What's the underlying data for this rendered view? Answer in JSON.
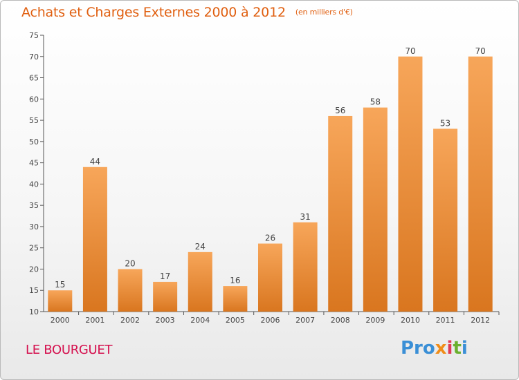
{
  "chart_data": {
    "type": "bar",
    "title": "Achats et Charges Externes 2000 à 2012",
    "unit_label": "(en milliers d'€)",
    "categories": [
      "2000",
      "2001",
      "2002",
      "2003",
      "2004",
      "2005",
      "2006",
      "2007",
      "2008",
      "2009",
      "2010",
      "2011",
      "2012"
    ],
    "values": [
      15,
      44,
      20,
      17,
      24,
      16,
      26,
      31,
      56,
      58,
      70,
      53,
      70
    ],
    "ylim": [
      10,
      75
    ],
    "yticks": [
      10,
      15,
      20,
      25,
      30,
      35,
      40,
      45,
      50,
      55,
      60,
      65,
      70,
      75
    ],
    "grid": false,
    "colors": {
      "bar_light": "#f7a65a",
      "bar_dark": "#d9761f",
      "axis": "#555555",
      "label": "#444444"
    }
  },
  "location": "LE BOURGUET",
  "logo": {
    "p1": "Pro",
    "p2": "x",
    "p3": "i",
    "p4": "t",
    "p5": "i"
  }
}
